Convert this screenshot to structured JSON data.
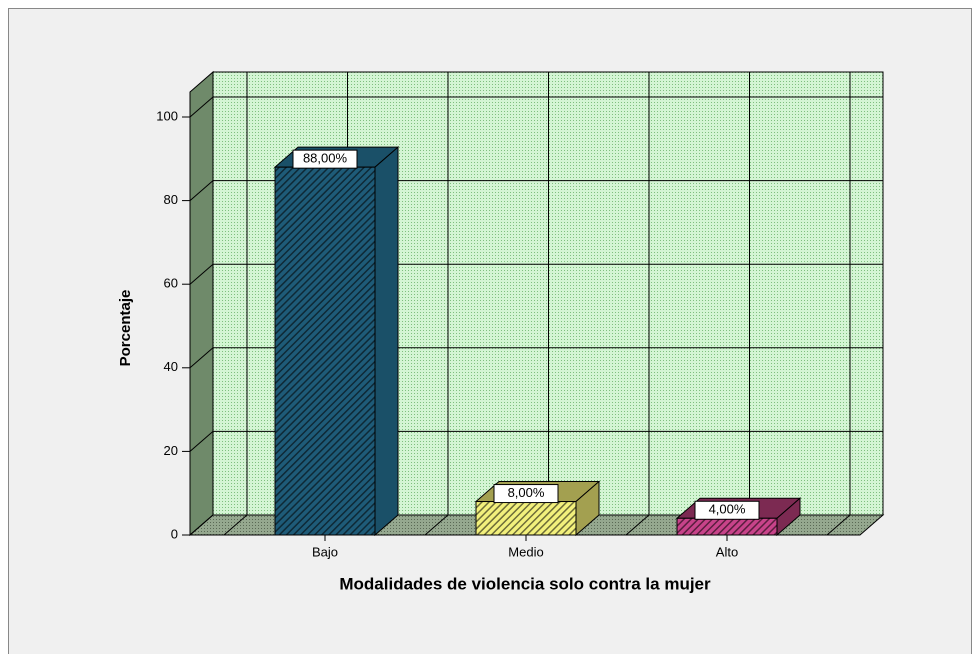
{
  "chart_data": {
    "type": "bar3d",
    "x_label": "Modalidades de violencia solo contra la mujer",
    "y_label": "Porcentaje",
    "categories": [
      "Bajo",
      "Medio",
      "Alto"
    ],
    "values": [
      88,
      8,
      4
    ],
    "value_labels": [
      "88,00%",
      "8,00%",
      "4,00%"
    ],
    "colors": [
      "#1e5b78",
      "#f2f07c",
      "#c8438a"
    ],
    "side_colors": [
      "#1a5068",
      "#a3a050",
      "#7c2a52"
    ],
    "ylim": [
      0,
      100
    ],
    "yticks": [
      0,
      20,
      40,
      60,
      80,
      100
    ],
    "grid": true
  }
}
